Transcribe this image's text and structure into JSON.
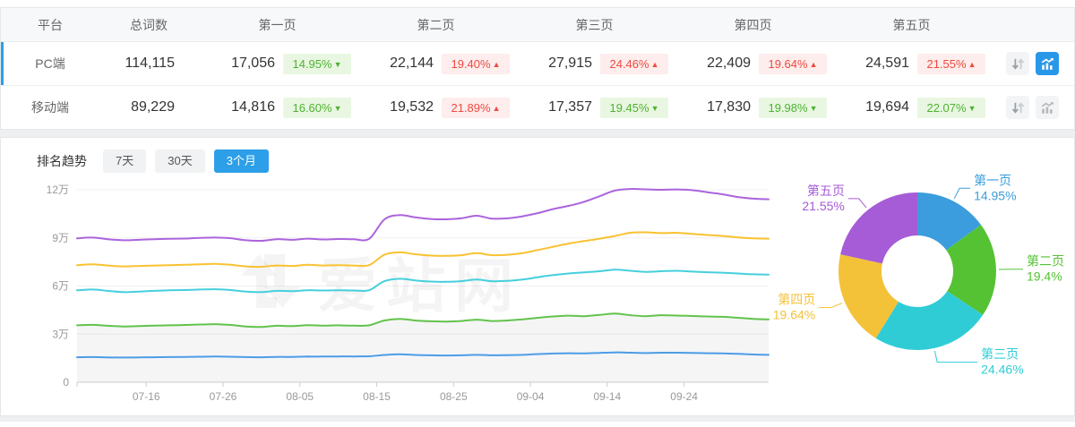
{
  "page": {
    "background": "#edeff0"
  },
  "table": {
    "columns": [
      "平台",
      "总词数",
      "第一页",
      "第二页",
      "第三页",
      "第四页",
      "第五页",
      ""
    ],
    "rows": [
      {
        "platform": "PC端",
        "total": "114,115",
        "selected": true,
        "chart_active": true,
        "pages": [
          {
            "count": "17,056",
            "change": "14.95%",
            "direction": "down"
          },
          {
            "count": "22,144",
            "change": "19.40%",
            "direction": "up"
          },
          {
            "count": "27,915",
            "change": "24.46%",
            "direction": "up"
          },
          {
            "count": "22,409",
            "change": "19.64%",
            "direction": "up"
          },
          {
            "count": "24,591",
            "change": "21.55%",
            "direction": "up"
          }
        ]
      },
      {
        "platform": "移动端",
        "total": "89,229",
        "selected": false,
        "chart_active": false,
        "pages": [
          {
            "count": "14,816",
            "change": "16.60%",
            "direction": "down"
          },
          {
            "count": "19,532",
            "change": "21.89%",
            "direction": "up"
          },
          {
            "count": "17,357",
            "change": "19.45%",
            "direction": "down"
          },
          {
            "count": "17,830",
            "change": "19.98%",
            "direction": "down"
          },
          {
            "count": "19,694",
            "change": "22.07%",
            "direction": "down"
          }
        ]
      }
    ],
    "colors": {
      "up_text": "#ee4a41",
      "up_bg": "#fdedec",
      "down_text": "#4eb230",
      "down_bg": "#e9f7e2",
      "selected_bar": "#2d9fe8",
      "active_icon_bg": "#2997e8"
    }
  },
  "trend": {
    "title": "排名趋势",
    "ranges": [
      {
        "label": "7天",
        "active": false
      },
      {
        "label": "30天",
        "active": false
      },
      {
        "label": "3个月",
        "active": true
      }
    ],
    "active_color": "#2d9fe8"
  },
  "watermark": {
    "text": "爱站网"
  },
  "chart_data": [
    {
      "type": "line",
      "title": "排名趋势 3个月 (PC端) — stacked cumulative keyword counts",
      "unit": "万",
      "x_start": "07-07",
      "x_end": "10-05",
      "x_total_days": 90,
      "point_interval_days": 2,
      "x_tick_labels": [
        "07-16",
        "07-26",
        "08-05",
        "08-15",
        "08-25",
        "09-04",
        "09-14",
        "09-24"
      ],
      "x_tick_days": [
        9,
        19,
        29,
        39,
        49,
        59,
        69,
        79
      ],
      "y_tick_labels": [
        "0",
        "3万",
        "6万",
        "9万",
        "12万"
      ],
      "ylim_wan": [
        0,
        12
      ],
      "grid": true,
      "stacked_cumulative": true,
      "series": [
        {
          "name": "第一页",
          "color": "#4d9ce6",
          "values": [
            1.56,
            1.57,
            1.55,
            1.54,
            1.55,
            1.56,
            1.57,
            1.58,
            1.59,
            1.6,
            1.59,
            1.57,
            1.56,
            1.58,
            1.58,
            1.6,
            1.6,
            1.61,
            1.61,
            1.62,
            1.7,
            1.74,
            1.7,
            1.68,
            1.67,
            1.68,
            1.71,
            1.68,
            1.69,
            1.71,
            1.76,
            1.79,
            1.81,
            1.8,
            1.83,
            1.86,
            1.84,
            1.82,
            1.84,
            1.84,
            1.83,
            1.81,
            1.8,
            1.77,
            1.73,
            1.71
          ]
        },
        {
          "name": "第二页",
          "color": "#62c34c",
          "area_fill": "rgba(115,120,125,0.07)",
          "values": [
            3.55,
            3.58,
            3.52,
            3.48,
            3.5,
            3.53,
            3.55,
            3.57,
            3.6,
            3.62,
            3.57,
            3.48,
            3.45,
            3.52,
            3.5,
            3.56,
            3.53,
            3.55,
            3.53,
            3.55,
            3.85,
            3.95,
            3.85,
            3.8,
            3.78,
            3.82,
            3.9,
            3.82,
            3.85,
            3.92,
            4.02,
            4.1,
            4.15,
            4.12,
            4.2,
            4.28,
            4.18,
            4.12,
            4.18,
            4.16,
            4.13,
            4.1,
            4.08,
            4.02,
            3.95,
            3.92
          ]
        },
        {
          "name": "第三页",
          "color": "#45cfdd",
          "values": [
            5.73,
            5.78,
            5.7,
            5.62,
            5.65,
            5.7,
            5.73,
            5.75,
            5.78,
            5.8,
            5.75,
            5.65,
            5.62,
            5.7,
            5.68,
            5.74,
            5.72,
            5.74,
            5.72,
            5.74,
            6.3,
            6.45,
            6.35,
            6.28,
            6.26,
            6.3,
            6.4,
            6.3,
            6.32,
            6.4,
            6.55,
            6.68,
            6.78,
            6.85,
            6.92,
            7.02,
            6.95,
            6.88,
            6.92,
            6.95,
            6.9,
            6.86,
            6.83,
            6.78,
            6.73,
            6.71
          ]
        },
        {
          "name": "第四页",
          "color": "#f9c232",
          "values": [
            7.3,
            7.35,
            7.28,
            7.22,
            7.25,
            7.28,
            7.3,
            7.32,
            7.35,
            7.38,
            7.32,
            7.22,
            7.2,
            7.28,
            7.25,
            7.32,
            7.28,
            7.3,
            7.28,
            7.3,
            7.95,
            8.1,
            7.98,
            7.9,
            7.88,
            7.92,
            8.05,
            7.92,
            7.95,
            8.05,
            8.25,
            8.45,
            8.65,
            8.8,
            8.95,
            9.12,
            9.32,
            9.35,
            9.3,
            9.32,
            9.25,
            9.18,
            9.12,
            9.03,
            8.97,
            8.95
          ]
        },
        {
          "name": "第五页",
          "color": "#ab64dc",
          "values": [
            8.97,
            9.02,
            8.92,
            8.85,
            8.88,
            8.92,
            8.94,
            8.96,
            9.0,
            9.02,
            8.98,
            8.85,
            8.82,
            8.92,
            8.88,
            8.95,
            8.9,
            8.93,
            8.92,
            8.94,
            10.15,
            10.42,
            10.28,
            10.18,
            10.16,
            10.22,
            10.38,
            10.2,
            10.22,
            10.35,
            10.55,
            10.8,
            11.0,
            11.25,
            11.6,
            11.95,
            12.05,
            12.03,
            12.0,
            12.02,
            11.98,
            11.85,
            11.72,
            11.55,
            11.45,
            11.41
          ]
        }
      ]
    },
    {
      "type": "pie",
      "donut": true,
      "labels": [
        "第一页",
        "第二页",
        "第三页",
        "第四页",
        "第五页"
      ],
      "values": [
        14.95,
        19.4,
        24.46,
        19.64,
        21.55
      ],
      "display_labels": [
        "14.95%",
        "19.4%",
        "24.46%",
        "19.64%",
        "21.55%"
      ],
      "colors": [
        "#3b9ddd",
        "#55c234",
        "#30ccd6",
        "#f3c238",
        "#a55cd6"
      ],
      "legend_position": "callout-labels"
    }
  ]
}
